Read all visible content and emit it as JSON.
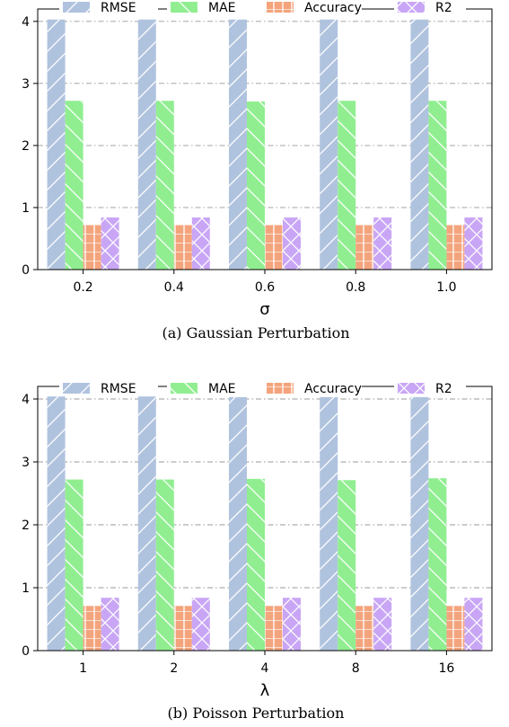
{
  "colors": {
    "RMSE": "#b0c3de",
    "MAE": "#90ee90",
    "Accuracy": "#f4a47c",
    "R2": "#c9a6f5",
    "grid": "#999999",
    "axis": "#000000"
  },
  "chart_data": [
    {
      "type": "bar",
      "xlabel": "σ",
      "caption": "(a)  Gaussian Perturbation",
      "categories": [
        "0.2",
        "0.4",
        "0.6",
        "0.8",
        "1.0"
      ],
      "ylim": [
        0,
        4.2
      ],
      "yticks": [
        0,
        1,
        2,
        3,
        4
      ],
      "grid": "horizontal dash-dot",
      "legend": "top, horizontal",
      "series": [
        {
          "name": "RMSE",
          "values": [
            4.03,
            4.03,
            4.03,
            4.03,
            4.03
          ],
          "hatch": "diagonal"
        },
        {
          "name": "MAE",
          "values": [
            2.72,
            2.72,
            2.71,
            2.72,
            2.72
          ],
          "hatch": "backslash"
        },
        {
          "name": "Accuracy",
          "values": [
            0.72,
            0.72,
            0.72,
            0.72,
            0.72
          ],
          "hatch": "grid"
        },
        {
          "name": "R2",
          "values": [
            0.84,
            0.84,
            0.84,
            0.84,
            0.84
          ],
          "hatch": "cross"
        }
      ]
    },
    {
      "type": "bar",
      "xlabel": "λ",
      "caption": "(b)  Poisson Perturbation",
      "categories": [
        "1",
        "2",
        "4",
        "8",
        "16"
      ],
      "ylim": [
        0,
        4.2
      ],
      "yticks": [
        0,
        1,
        2,
        3,
        4
      ],
      "grid": "horizontal dash-dot",
      "legend": "top, horizontal",
      "series": [
        {
          "name": "RMSE",
          "values": [
            4.04,
            4.04,
            4.03,
            4.03,
            4.03
          ],
          "hatch": "diagonal"
        },
        {
          "name": "MAE",
          "values": [
            2.72,
            2.72,
            2.73,
            2.71,
            2.74
          ],
          "hatch": "backslash"
        },
        {
          "name": "Accuracy",
          "values": [
            0.71,
            0.71,
            0.71,
            0.71,
            0.71
          ],
          "hatch": "grid"
        },
        {
          "name": "R2",
          "values": [
            0.84,
            0.84,
            0.84,
            0.84,
            0.84
          ],
          "hatch": "cross"
        }
      ]
    }
  ]
}
